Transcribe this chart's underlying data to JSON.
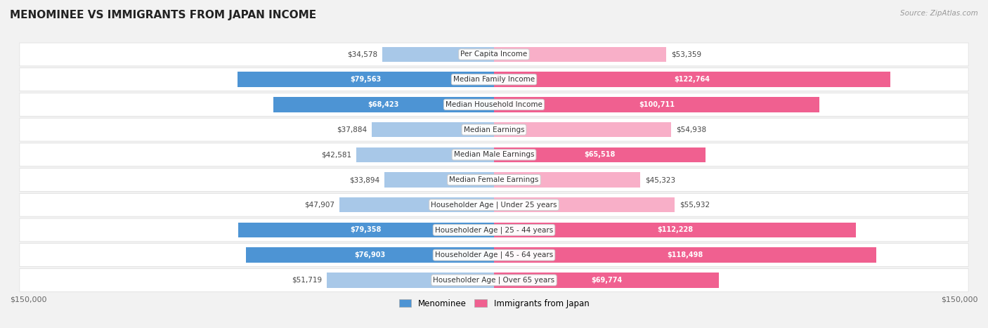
{
  "title": "MENOMINEE VS IMMIGRANTS FROM JAPAN INCOME",
  "source": "Source: ZipAtlas.com",
  "categories": [
    "Per Capita Income",
    "Median Family Income",
    "Median Household Income",
    "Median Earnings",
    "Median Male Earnings",
    "Median Female Earnings",
    "Householder Age | Under 25 years",
    "Householder Age | 25 - 44 years",
    "Householder Age | 45 - 64 years",
    "Householder Age | Over 65 years"
  ],
  "menominee_values": [
    34578,
    79563,
    68423,
    37884,
    42581,
    33894,
    47907,
    79358,
    76903,
    51719
  ],
  "japan_values": [
    53359,
    122764,
    100711,
    54938,
    65518,
    45323,
    55932,
    112228,
    118498,
    69774
  ],
  "menominee_labels": [
    "$34,578",
    "$79,563",
    "$68,423",
    "$37,884",
    "$42,581",
    "$33,894",
    "$47,907",
    "$79,358",
    "$76,903",
    "$51,719"
  ],
  "japan_labels": [
    "$53,359",
    "$122,764",
    "$100,711",
    "$54,938",
    "$65,518",
    "$45,323",
    "$55,932",
    "$112,228",
    "$118,498",
    "$69,774"
  ],
  "max_val": 150000,
  "color_menominee_dark": "#4d94d4",
  "color_menominee_light": "#a8c8e8",
  "color_japan_dark": "#f06090",
  "color_japan_light": "#f8afc8",
  "bg_color": "#f2f2f2",
  "row_bg": "#ffffff",
  "ylabel_left": "$150,000",
  "ylabel_right": "$150,000",
  "legend_menominee": "Menominee",
  "legend_japan": "Immigrants from Japan",
  "dark_threshold_men": 60000,
  "dark_threshold_jpn": 60000
}
